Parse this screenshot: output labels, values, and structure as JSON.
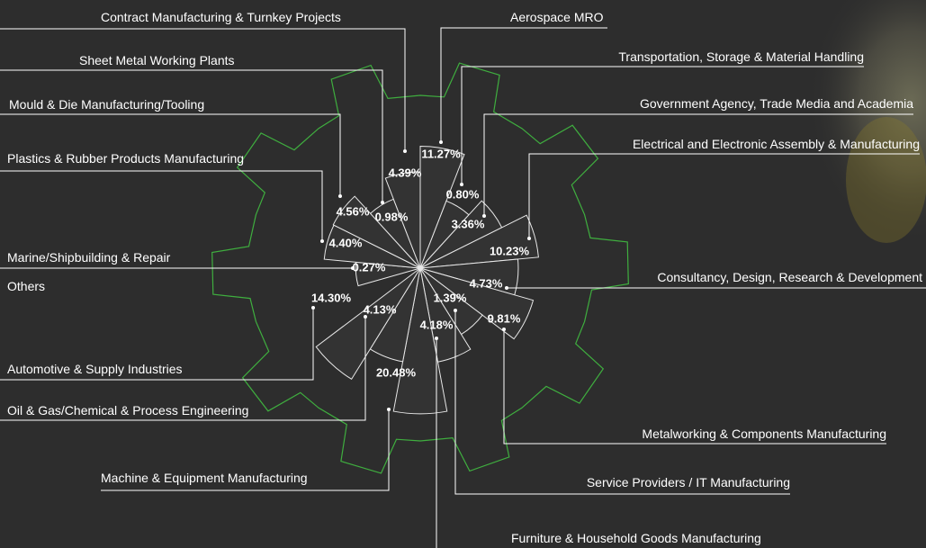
{
  "chart_data": {
    "type": "polar",
    "categories": [
      "Aerospace MRO",
      "Transportation, Storage & Material Handling",
      "Government Agency, Trade Media and Academia",
      "Electrical and Electronic Assembly & Manufacturing",
      "Consultancy, Design, Research & Development",
      "Metalworking & Components Manufacturing",
      "Service Providers / IT Manufacturing",
      "Furniture & Household Goods Manufacturing",
      "Machine & Equipment Manufacturing",
      "Oil & Gas/Chemical & Process Engineering",
      "Automotive & Supply Industries",
      "Others",
      "Marine/Shipbuilding & Repair",
      "Plastics & Rubber Products Manufacturing",
      "Mould & Die Manufacturing/Tooling",
      "Sheet Metal Working Plants",
      "Contract Manufacturing & Turnkey Projects"
    ],
    "values": [
      11.27,
      0.8,
      3.36,
      10.23,
      4.73,
      9.81,
      1.39,
      4.18,
      20.48,
      4.13,
      14.3,
      null,
      0.27,
      4.4,
      4.56,
      0.98,
      4.39
    ],
    "value_labels": [
      "11.27%",
      "0.80%",
      "3.36%",
      "10.23%",
      "4.73%",
      "9.81%",
      "1.39%",
      "4.18%",
      "20.48%",
      "4.13%",
      "14.30%",
      null,
      "0.27%",
      "4.40%",
      "4.56%",
      "0.98%",
      "4.39%"
    ],
    "color": "#333333"
  }
}
